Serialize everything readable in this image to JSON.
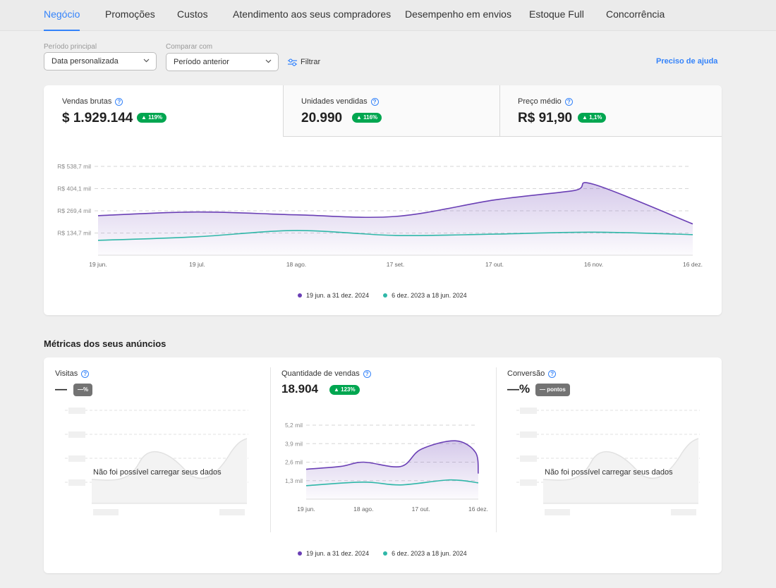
{
  "tabs": [
    "Negócio",
    "Promoções",
    "Custos",
    "Atendimento aos seus compradores",
    "Desempenho em envios",
    "Estoque Full",
    "Concorrência"
  ],
  "filters": {
    "period_label": "Período principal",
    "period_value": "Data personalizada",
    "compare_label": "Comparar com",
    "compare_value": "Período anterior",
    "filter_label": "Filtrar",
    "help_label": "Preciso de ajuda"
  },
  "kpis": [
    {
      "title": "Vendas brutas",
      "value": "$ 1.929.144",
      "change": "▲ 119%"
    },
    {
      "title": "Unidades vendidas",
      "value": "20.990",
      "change": "▲ 116%"
    },
    {
      "title": "Preço médio",
      "value": "R$ 91,90",
      "change": "▲ 1,1%"
    }
  ],
  "legend": {
    "current": "19 jun. a 31 dez. 2024",
    "previous": "6 dez. 2023 a 18 jun. 2024"
  },
  "colors": {
    "current": "#6a3fb5",
    "previous": "#2fb7a8",
    "accent": "#3483fa",
    "positive": "#00a650"
  },
  "metrics": {
    "section_title": "Métricas dos seus anúncios",
    "visits": {
      "title": "Visitas",
      "value": "—",
      "change": "—%",
      "error": "Não foi possível carregar seus dados"
    },
    "sales": {
      "title": "Quantidade de vendas",
      "value": "18.904",
      "change": "▲ 123%"
    },
    "conversion": {
      "title": "Conversão",
      "value": "—%",
      "change": "— pontos",
      "error": "Não foi possível carregar seus dados"
    }
  },
  "chart_data": [
    {
      "type": "area",
      "title": "Vendas brutas",
      "categories": [
        "19 jun.",
        "19 jul.",
        "18 ago.",
        "17 set.",
        "17 out.",
        "16 nov.",
        "16 dez."
      ],
      "y_tick_labels": [
        "R$ 134,7 mil",
        "R$ 269,4 mil",
        "R$ 404,1 mil",
        "R$ 538,7 mil"
      ],
      "y_ticks": [
        134.7,
        269.4,
        404.1,
        538.7
      ],
      "ylim": [
        0,
        538.7
      ],
      "grid": true,
      "legend_position": "bottom",
      "series": [
        {
          "name": "19 jun. a 31 dez. 2024",
          "x": [
            0,
            1,
            2,
            3,
            4,
            4.8,
            5,
            6
          ],
          "values": [
            240,
            262,
            245,
            235,
            335,
            392,
            430,
            190
          ]
        },
        {
          "name": "6 dez. 2023 a 18 jun. 2024",
          "x": [
            0,
            1,
            2,
            3,
            4,
            5,
            6
          ],
          "values": [
            90,
            112,
            150,
            120,
            128,
            140,
            125
          ]
        }
      ]
    },
    {
      "type": "area",
      "title": "Quantidade de vendas",
      "categories": [
        "19 jun.",
        "18 ago.",
        "17 out.",
        "16 dez."
      ],
      "y_tick_labels": [
        "1,3 mil",
        "2,6 mil",
        "3,9 mil",
        "5,2 mil"
      ],
      "y_ticks": [
        1.3,
        2.6,
        3.9,
        5.2
      ],
      "ylim": [
        0,
        5.2
      ],
      "grid": true,
      "legend_position": "bottom",
      "series": [
        {
          "name": "19 jun. a 31 dez. 2024",
          "x": [
            0,
            0.6,
            1,
            1.65,
            2,
            2.6,
            2.95,
            3
          ],
          "values": [
            2.1,
            2.3,
            2.6,
            2.3,
            3.5,
            4.1,
            3.3,
            1.8
          ]
        },
        {
          "name": "6 dez. 2023 a 18 jun. 2024",
          "x": [
            0,
            1,
            1.65,
            2.5,
            3
          ],
          "values": [
            0.95,
            1.2,
            1.0,
            1.35,
            1.15
          ]
        }
      ]
    }
  ]
}
